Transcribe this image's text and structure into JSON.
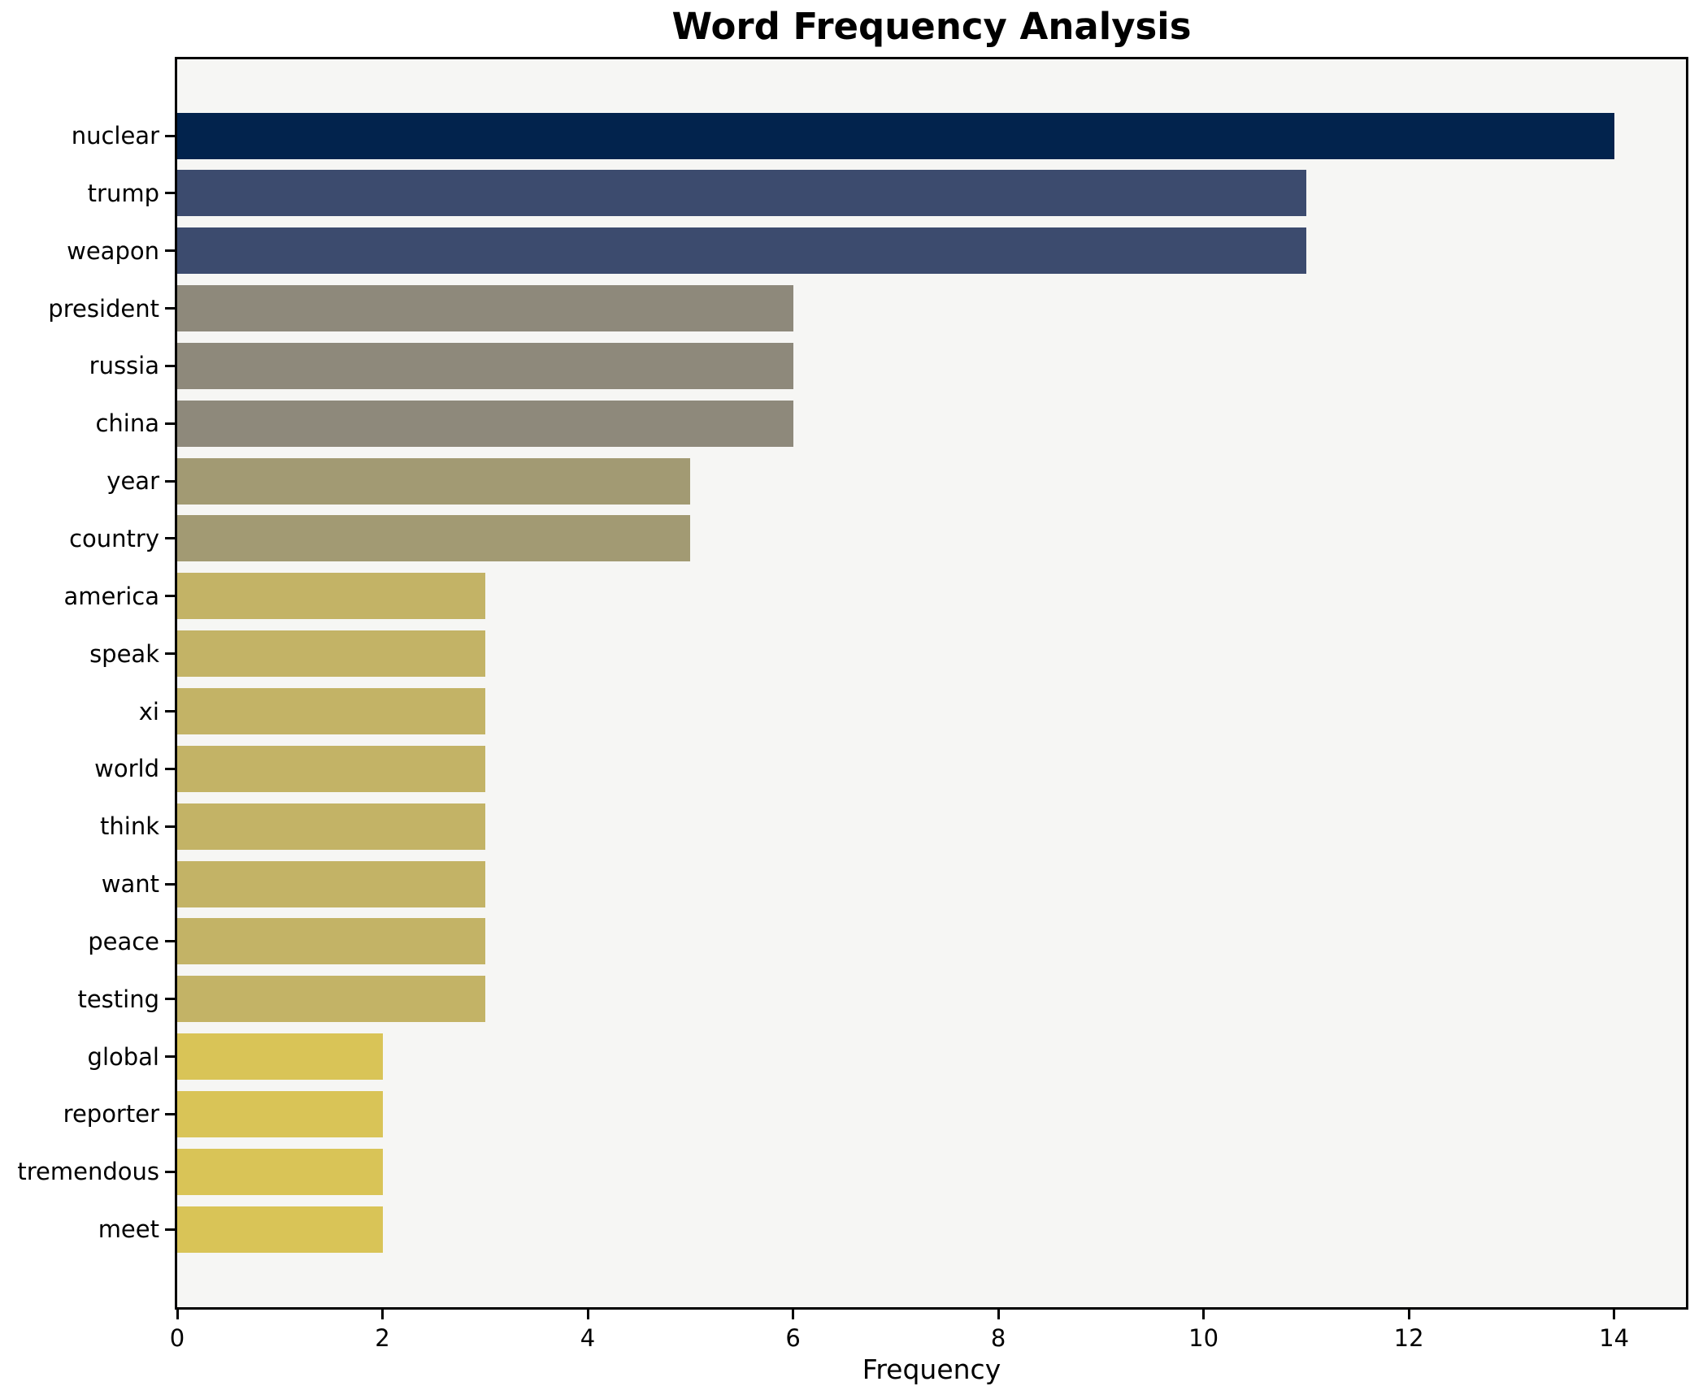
{
  "title": "Word Frequency Analysis",
  "chart_data": {
    "type": "bar",
    "orientation": "horizontal",
    "title": "Word Frequency Analysis",
    "xlabel": "Frequency",
    "ylabel": "",
    "categories": [
      "nuclear",
      "trump",
      "weapon",
      "president",
      "russia",
      "china",
      "year",
      "country",
      "america",
      "speak",
      "xi",
      "world",
      "think",
      "want",
      "peace",
      "testing",
      "global",
      "reporter",
      "tremendous",
      "meet"
    ],
    "values": [
      14,
      11,
      11,
      6,
      6,
      6,
      5,
      5,
      3,
      3,
      3,
      3,
      3,
      3,
      3,
      3,
      2,
      2,
      2,
      2
    ],
    "bar_colors": [
      "#02234d",
      "#3c4b6e",
      "#3c4b6e",
      "#8e897b",
      "#8e897b",
      "#8e897b",
      "#a29a73",
      "#a29a73",
      "#c3b366",
      "#c3b366",
      "#c3b366",
      "#c3b366",
      "#c3b366",
      "#c3b366",
      "#c3b366",
      "#c3b366",
      "#d9c457",
      "#d9c457",
      "#d9c457",
      "#d9c457"
    ],
    "xlim": [
      0,
      14.7
    ],
    "x_ticks": [
      0,
      2,
      4,
      6,
      8,
      10,
      12,
      14
    ],
    "grid": false,
    "legend": "none",
    "plot_background": "#f6f6f4",
    "figure_background": "#ffffff",
    "spine_color": "#000000",
    "text_color": "#000000"
  }
}
